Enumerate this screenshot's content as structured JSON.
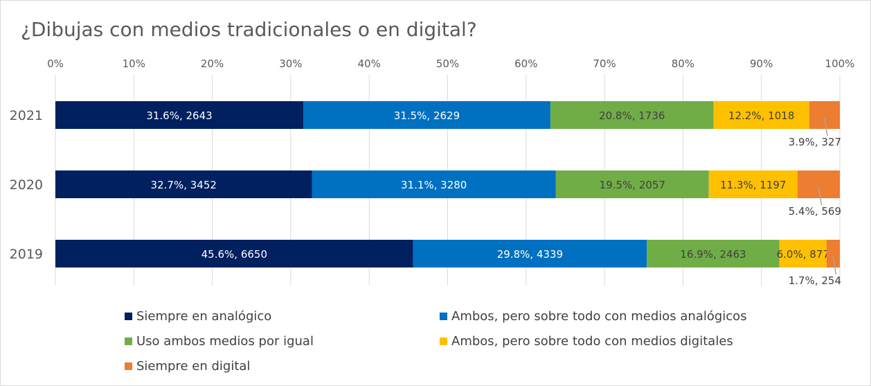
{
  "chart_data": {
    "type": "bar",
    "orientation": "horizontal",
    "stacked": "percent",
    "title": "¿Dibujas con medios tradicionales o en digital?",
    "categories": [
      "2021",
      "2020",
      "2019"
    ],
    "x_ticks": [
      "0%",
      "10%",
      "20%",
      "30%",
      "40%",
      "50%",
      "60%",
      "70%",
      "80%",
      "90%",
      "100%"
    ],
    "xlim": [
      0,
      100
    ],
    "grid": true,
    "legend_position": "bottom",
    "series": [
      {
        "name": "Siempre en analógico",
        "color": "#002060",
        "values": [
          31.6,
          32.7,
          45.6
        ],
        "counts": [
          2643,
          3452,
          6650
        ],
        "labels": [
          "31.6%, 2643",
          "32.7%, 3452",
          "45.6%, 6650"
        ]
      },
      {
        "name": "Ambos, pero sobre todo con medios analógicos",
        "color": "#0070c0",
        "values": [
          31.5,
          31.1,
          29.8
        ],
        "counts": [
          2629,
          3280,
          4339
        ],
        "labels": [
          "31.5%, 2629",
          "31.1%, 3280",
          "29.8%, 4339"
        ]
      },
      {
        "name": "Uso ambos medios por igual",
        "color": "#70ad47",
        "values": [
          20.8,
          19.5,
          16.9
        ],
        "counts": [
          1736,
          2057,
          2463
        ],
        "labels": [
          "20.8%, 1736",
          "19.5%, 2057",
          "16.9%, 2463"
        ]
      },
      {
        "name": "Ambos, pero sobre todo con medios digitales",
        "color": "#ffc000",
        "values": [
          12.2,
          11.3,
          6.0
        ],
        "counts": [
          1018,
          1197,
          877
        ],
        "labels": [
          "12.2%, 1018",
          "11.3%, 1197",
          "6.0%, 877"
        ]
      },
      {
        "name": "Siempre en digital",
        "color": "#ed7d31",
        "values": [
          3.9,
          5.4,
          1.7
        ],
        "counts": [
          327,
          569,
          254
        ],
        "labels": [
          "3.9%, 327",
          "5.4%, 569",
          "1.7%, 254"
        ]
      }
    ]
  }
}
